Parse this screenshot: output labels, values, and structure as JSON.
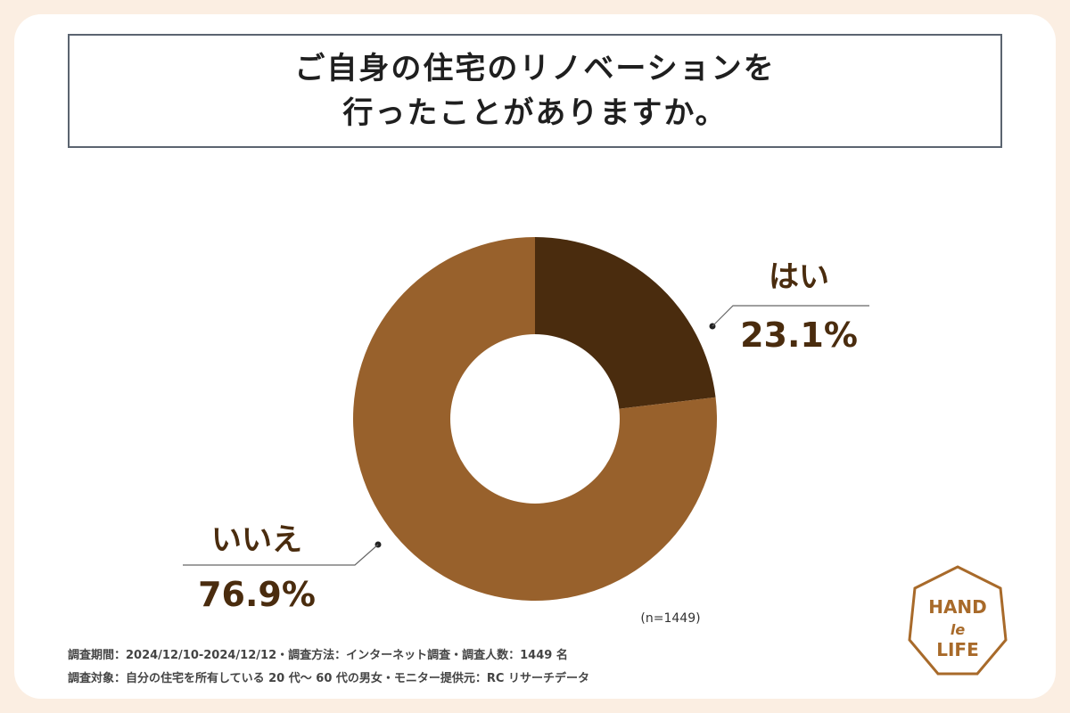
{
  "title": {
    "line1": "ご自身の住宅のリノベーションを",
    "line2": "行ったことがありますか。"
  },
  "chart_data": {
    "type": "pie",
    "categories": [
      "はい",
      "いいえ"
    ],
    "values": [
      23.1,
      76.9
    ],
    "unit": "%",
    "value_labels": [
      "23.1%",
      "76.9%"
    ],
    "colors": [
      "#4a2c0e",
      "#98612c"
    ],
    "label_color": "#4a2c0e",
    "sample_note": "(n=1449)"
  },
  "footnotes": {
    "line1": "調査期間：2024/12/10-2024/12/12・調査方法：インターネット調査・調査人数：1449 名",
    "line2": "調査対象：自分の住宅を所有している 20 代〜 60 代の男女・モニター提供元：RC リサーチデータ"
  },
  "logo": {
    "line1": "HAND",
    "line2": "le",
    "line3": "LIFE",
    "color": "#a86a2a"
  }
}
